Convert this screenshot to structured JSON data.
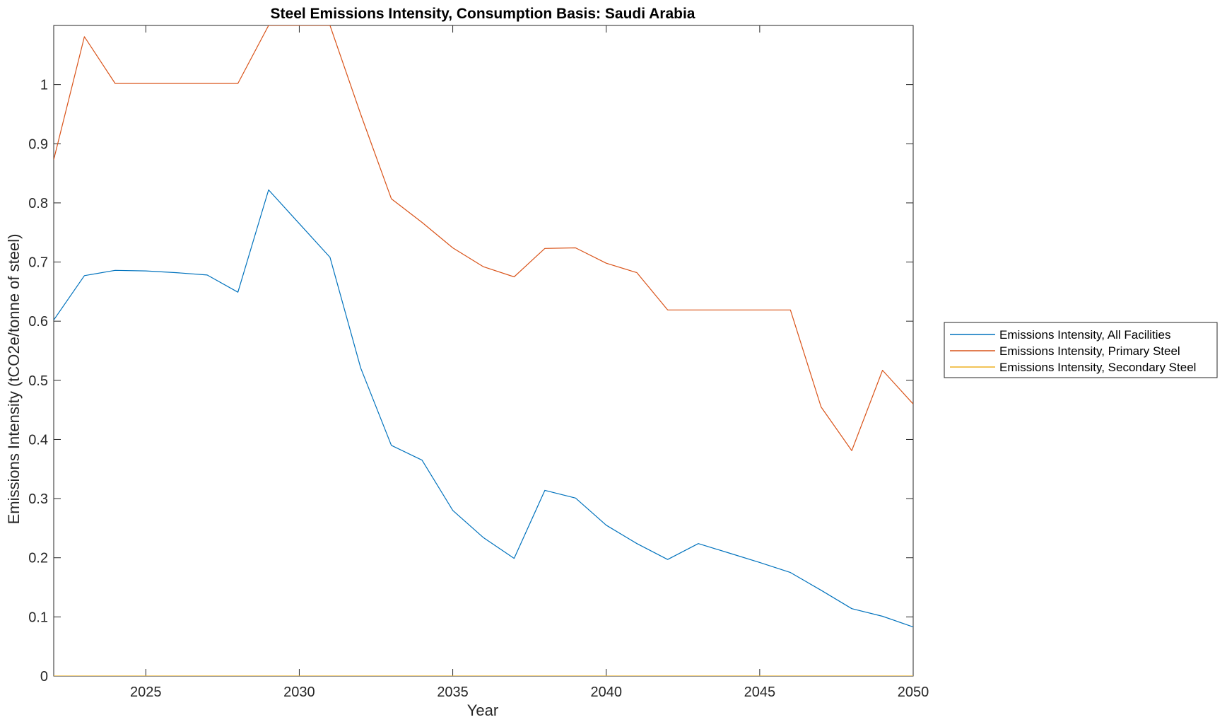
{
  "chart_data": {
    "type": "line",
    "title": "Steel Emissions Intensity, Consumption Basis: Saudi Arabia",
    "xlabel": "Year",
    "ylabel": "Emissions Intensity (tCO2e/tonne of steel)",
    "xlim": [
      2022,
      2050
    ],
    "ylim": [
      0,
      1.1
    ],
    "xticks": [
      2025,
      2030,
      2035,
      2040,
      2045,
      2050
    ],
    "xtick_labels": [
      "2025",
      "2030",
      "2035",
      "2040",
      "2045",
      "2050"
    ],
    "yticks": [
      0,
      0.1,
      0.2,
      0.3,
      0.4,
      0.5,
      0.6,
      0.7,
      0.8,
      0.9,
      1
    ],
    "ytick_labels": [
      "0",
      "0.1",
      "0.2",
      "0.3",
      "0.4",
      "0.5",
      "0.6",
      "0.7",
      "0.8",
      "0.9",
      "1"
    ],
    "grid": false,
    "legend_position": "outside-right",
    "x": [
      2022,
      2023,
      2024,
      2025,
      2026,
      2027,
      2028,
      2029,
      2030,
      2031,
      2032,
      2033,
      2034,
      2035,
      2036,
      2037,
      2038,
      2039,
      2040,
      2041,
      2042,
      2043,
      2044,
      2045,
      2046,
      2047,
      2048,
      2049,
      2050
    ],
    "series": [
      {
        "name": "Emissions Intensity, All Facilities",
        "color": "#0072BD",
        "values": [
          0.602,
          0.677,
          0.686,
          0.685,
          0.682,
          0.678,
          0.649,
          0.822,
          0.765,
          0.708,
          0.521,
          0.39,
          0.365,
          0.28,
          0.234,
          0.199,
          0.314,
          0.301,
          0.255,
          0.224,
          0.197,
          0.224,
          0.208,
          0.192,
          0.175,
          0.145,
          0.114,
          0.101,
          0.083
        ]
      },
      {
        "name": "Emissions Intensity, Primary Steel",
        "color": "#D95319",
        "values": [
          0.873,
          1.081,
          1.002,
          1.002,
          1.002,
          1.002,
          1.002,
          1.1,
          1.1,
          1.1,
          0.95,
          0.807,
          0.767,
          0.724,
          0.692,
          0.675,
          0.723,
          0.724,
          0.698,
          0.682,
          0.619,
          0.619,
          0.619,
          0.619,
          0.619,
          0.455,
          0.381,
          0.517,
          0.46
        ]
      },
      {
        "name": "Emissions Intensity, Secondary Steel",
        "color": "#EDB120",
        "values": [
          0,
          0,
          0,
          0,
          0,
          0,
          0,
          0,
          0,
          0,
          0,
          0,
          0,
          0,
          0,
          0,
          0,
          0,
          0,
          0,
          0,
          0,
          0,
          0,
          0,
          0,
          0,
          0,
          0
        ]
      }
    ]
  }
}
